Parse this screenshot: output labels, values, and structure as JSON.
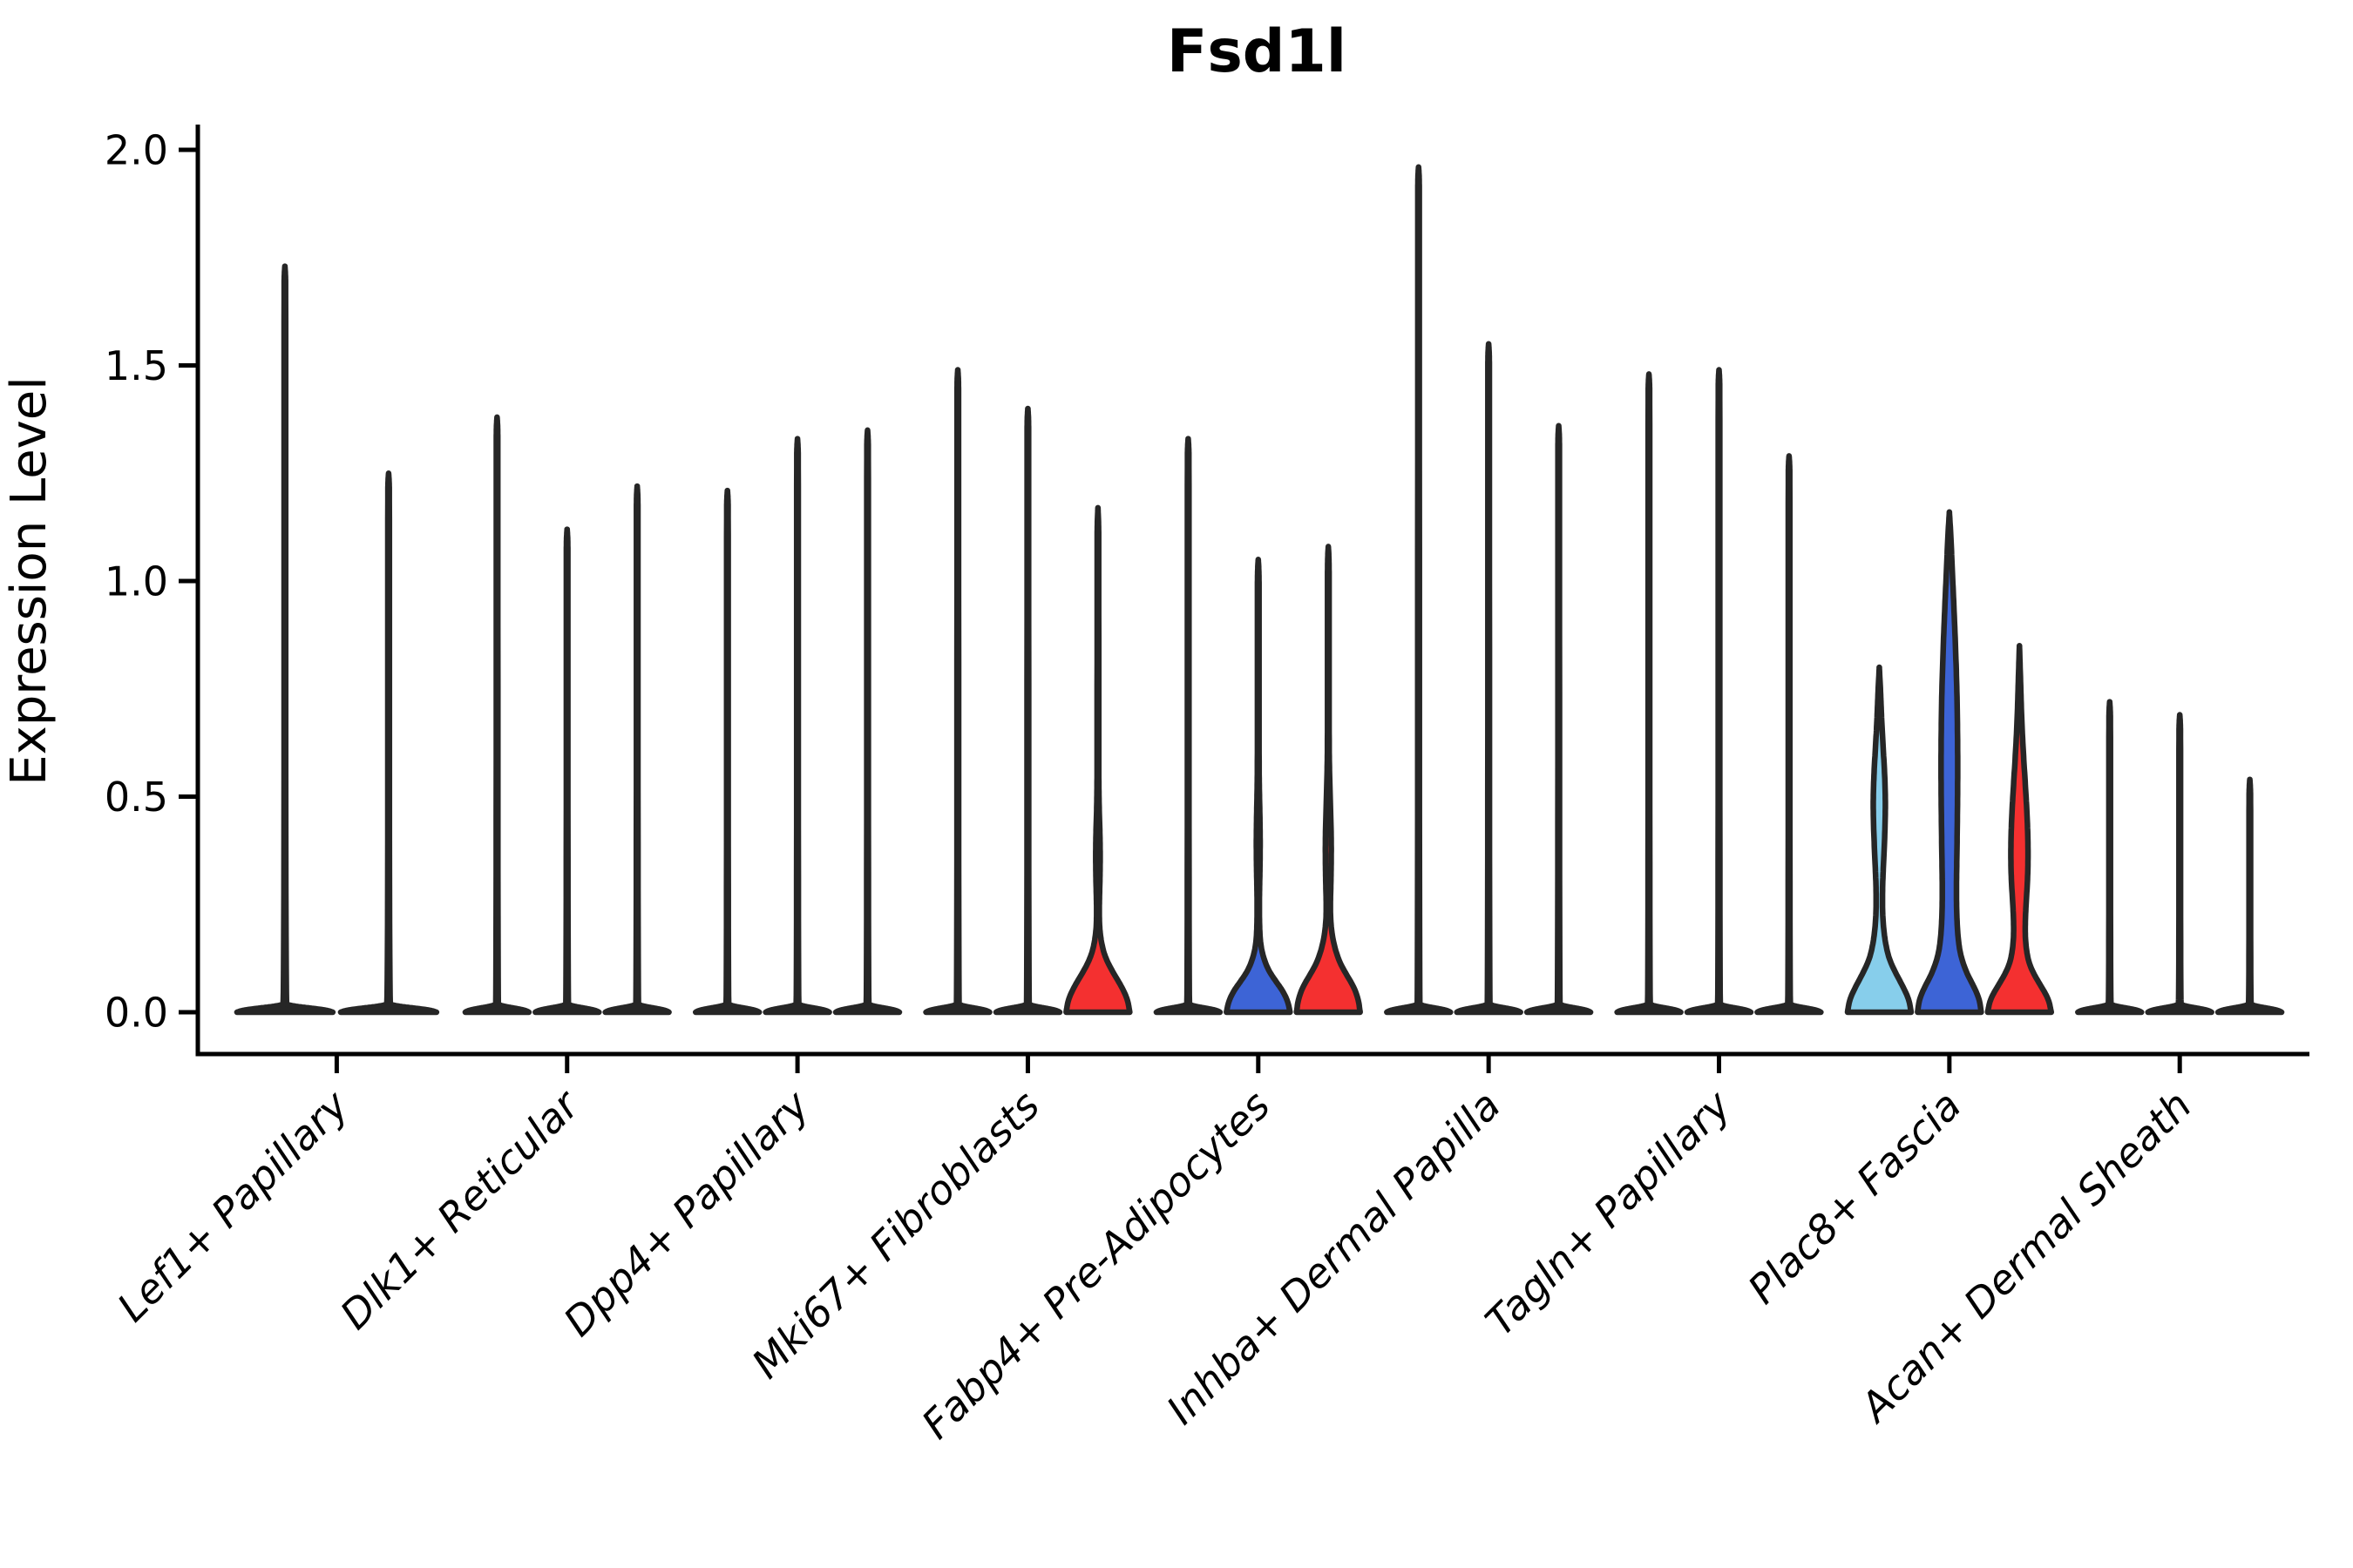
{
  "title": "Fsd1l",
  "chart_data": {
    "type": "violin",
    "title": "Fsd1l",
    "xlabel": "",
    "ylabel": "Expression Level",
    "ylim": [
      0,
      2.06
    ],
    "yticks": [
      0.0,
      0.5,
      1.0,
      1.5,
      2.0
    ],
    "grid": false,
    "legend": "none",
    "colors": {
      "outline": "#262626",
      "axis": "#000000",
      "sky_blue": "#87CEEB",
      "royal_blue": "#3D64D6",
      "red": "#F43030"
    },
    "categories": [
      "Lef1+ Papillary",
      "Dlk1+ Reticular",
      "Dpp4+ Papillary",
      "Mki67+ Fibroblasts",
      "Fabp4+ Pre-Adipocytes",
      "Inhba+ Dermal Papilla",
      "Tagln+ Papillary",
      "Plac8+ Fascia",
      "Acan+ Dermal Sheath"
    ],
    "series": [
      {
        "category": "Lef1+ Papillary",
        "violins": [
          {
            "max": 1.73,
            "style": "thin"
          },
          {
            "max": 1.25,
            "style": "thin"
          }
        ]
      },
      {
        "category": "Dlk1+ Reticular",
        "violins": [
          {
            "max": 1.38,
            "style": "thin"
          },
          {
            "max": 1.12,
            "style": "thin"
          },
          {
            "max": 1.22,
            "style": "thin"
          }
        ]
      },
      {
        "category": "Dpp4+ Papillary",
        "violins": [
          {
            "max": 1.21,
            "style": "thin"
          },
          {
            "max": 1.33,
            "style": "thin"
          },
          {
            "max": 1.35,
            "style": "thin"
          }
        ]
      },
      {
        "category": "Mki67+ Fibroblasts",
        "violins": [
          {
            "max": 1.49,
            "style": "thin"
          },
          {
            "max": 1.4,
            "style": "thin"
          },
          {
            "max": 1.17,
            "style": "filled",
            "fill": "#F43030",
            "profile": [
              [
                0,
                36.5
              ],
              [
                0.03,
                34
              ],
              [
                0.06,
                27
              ],
              [
                0.09,
                18
              ],
              [
                0.12,
                10
              ],
              [
                0.15,
                5
              ],
              [
                0.19,
                2
              ],
              [
                0.23,
                1.4
              ],
              [
                0.27,
                1.8
              ],
              [
                0.32,
                2.4
              ],
              [
                0.37,
                2.6
              ],
              [
                0.42,
                2.2
              ],
              [
                0.47,
                1.4
              ],
              [
                0.53,
                1.0
              ],
              [
                0.6,
                0.9
              ],
              [
                1.08,
                0.9
              ],
              [
                1.13,
                0.8
              ],
              [
                1.17,
                0.01
              ]
            ]
          }
        ]
      },
      {
        "category": "Fabp4+ Pre-Adipocytes",
        "violins": [
          {
            "max": 1.33,
            "style": "thin"
          },
          {
            "max": 1.05,
            "style": "filled",
            "fill": "#3D64D6",
            "profile": [
              [
                0,
                36.5
              ],
              [
                0.025,
                34
              ],
              [
                0.05,
                28
              ],
              [
                0.075,
                19
              ],
              [
                0.1,
                11
              ],
              [
                0.13,
                5.5
              ],
              [
                0.16,
                2.5
              ],
              [
                0.2,
                1.4
              ],
              [
                0.25,
                1.2
              ],
              [
                0.3,
                1.6
              ],
              [
                0.35,
                2.1
              ],
              [
                0.41,
                2.2
              ],
              [
                0.47,
                1.7
              ],
              [
                0.53,
                1.1
              ],
              [
                0.6,
                0.9
              ],
              [
                0.98,
                0.9
              ],
              [
                1.02,
                0.8
              ],
              [
                1.05,
                0.01
              ]
            ]
          },
          {
            "max": 1.08,
            "style": "filled",
            "fill": "#F43030",
            "profile": [
              [
                0,
                36.5
              ],
              [
                0.03,
                34.5
              ],
              [
                0.06,
                29
              ],
              [
                0.09,
                20
              ],
              [
                0.12,
                12
              ],
              [
                0.16,
                6
              ],
              [
                0.2,
                3
              ],
              [
                0.24,
                2.2
              ],
              [
                0.29,
                2.8
              ],
              [
                0.34,
                3.3
              ],
              [
                0.4,
                3.4
              ],
              [
                0.46,
                2.7
              ],
              [
                0.52,
                1.8
              ],
              [
                0.58,
                1.1
              ],
              [
                0.65,
                0.9
              ],
              [
                1.0,
                0.9
              ],
              [
                1.05,
                0.8
              ],
              [
                1.08,
                0.01
              ]
            ]
          }
        ]
      },
      {
        "category": "Inhba+ Dermal Papilla",
        "violins": [
          {
            "max": 1.96,
            "style": "thin"
          },
          {
            "max": 1.55,
            "style": "thin"
          },
          {
            "max": 1.36,
            "style": "thin"
          }
        ]
      },
      {
        "category": "Tagln+ Papillary",
        "violins": [
          {
            "max": 1.48,
            "style": "thin"
          },
          {
            "max": 1.49,
            "style": "thin"
          },
          {
            "max": 1.29,
            "style": "thin"
          }
        ]
      },
      {
        "category": "Plac8+ Fascia",
        "violins": [
          {
            "max": 0.8,
            "style": "filled",
            "fill": "#87CEEB",
            "profile": [
              [
                0,
                36.5
              ],
              [
                0.03,
                34
              ],
              [
                0.06,
                27
              ],
              [
                0.09,
                19
              ],
              [
                0.12,
                12
              ],
              [
                0.15,
                8
              ],
              [
                0.19,
                5
              ],
              [
                0.24,
                3.5
              ],
              [
                0.3,
                3.8
              ],
              [
                0.36,
                5.2
              ],
              [
                0.44,
                6.8
              ],
              [
                0.5,
                7.0
              ],
              [
                0.56,
                6.0
              ],
              [
                0.62,
                4.2
              ],
              [
                0.68,
                2.6
              ],
              [
                0.74,
                1.5
              ],
              [
                0.8,
                0.01
              ]
            ]
          },
          {
            "max": 1.16,
            "style": "filled",
            "fill": "#3D64D6",
            "profile": [
              [
                0,
                36.5
              ],
              [
                0.03,
                34.5
              ],
              [
                0.06,
                28
              ],
              [
                0.09,
                20
              ],
              [
                0.13,
                13
              ],
              [
                0.17,
                10
              ],
              [
                0.22,
                8.5
              ],
              [
                0.28,
                8.0
              ],
              [
                0.35,
                8.5
              ],
              [
                0.45,
                9.2
              ],
              [
                0.55,
                9.6
              ],
              [
                0.65,
                9.4
              ],
              [
                0.75,
                8.6
              ],
              [
                0.85,
                7.0
              ],
              [
                0.95,
                5.0
              ],
              [
                1.03,
                3.2
              ],
              [
                1.1,
                1.8
              ],
              [
                1.16,
                0.01
              ]
            ]
          },
          {
            "max": 0.85,
            "style": "filled",
            "fill": "#F43030",
            "profile": [
              [
                0,
                36.5
              ],
              [
                0.03,
                33.5
              ],
              [
                0.06,
                25
              ],
              [
                0.09,
                16
              ],
              [
                0.12,
                10
              ],
              [
                0.16,
                7
              ],
              [
                0.2,
                6.5
              ],
              [
                0.25,
                7.5
              ],
              [
                0.31,
                9.5
              ],
              [
                0.38,
                10.0
              ],
              [
                0.45,
                9.0
              ],
              [
                0.52,
                7.0
              ],
              [
                0.6,
                4.5
              ],
              [
                0.68,
                2.5
              ],
              [
                0.76,
                1.4
              ],
              [
                0.85,
                0.01
              ]
            ]
          }
        ]
      },
      {
        "category": "Acan+ Dermal Sheath",
        "violins": [
          {
            "max": 0.72,
            "style": "thin"
          },
          {
            "max": 0.69,
            "style": "thin"
          },
          {
            "max": 0.54,
            "style": "thin"
          }
        ]
      }
    ]
  }
}
